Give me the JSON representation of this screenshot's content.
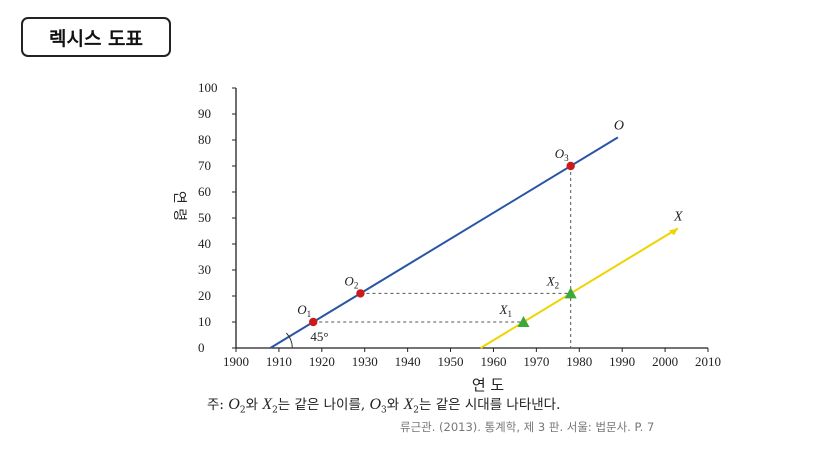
{
  "title": "렉시스 도표",
  "diagram": {
    "xlabel": "연 도",
    "ylabel": "연 령",
    "xticks": [
      1900,
      1910,
      1920,
      1930,
      1940,
      1950,
      1960,
      1970,
      1980,
      1990,
      2000,
      2010
    ],
    "yticks": [
      0,
      10,
      20,
      30,
      40,
      50,
      60,
      70,
      80,
      90,
      100
    ],
    "xlim": [
      1900,
      2010
    ],
    "ylim": [
      0,
      100
    ],
    "angle_label": "45°",
    "lines": [
      {
        "name": "O",
        "color": "#2a55a5",
        "from": [
          1908,
          0
        ],
        "to": [
          1989,
          81
        ]
      },
      {
        "name": "X",
        "color": "#f0d400",
        "from": [
          1957,
          0
        ],
        "to": [
          2003,
          46
        ]
      }
    ],
    "points": [
      {
        "label": "O",
        "sub": "1",
        "x": 1918,
        "y": 10,
        "marker": "circle",
        "color": "#cc1a1a"
      },
      {
        "label": "O",
        "sub": "2",
        "x": 1929,
        "y": 21,
        "marker": "circle",
        "color": "#cc1a1a"
      },
      {
        "label": "O",
        "sub": "3",
        "x": 1978,
        "y": 70,
        "marker": "circle",
        "color": "#cc1a1a"
      },
      {
        "label": "X",
        "sub": "1",
        "x": 1967,
        "y": 10,
        "marker": "triangle",
        "color": "#3aa83a"
      },
      {
        "label": "X",
        "sub": "2",
        "x": 1978,
        "y": 21,
        "marker": "triangle",
        "color": "#3aa83a"
      }
    ]
  },
  "caption": {
    "prefix": "주: ",
    "o2": "O",
    "o2_sub": "2",
    "wa1": "와 ",
    "x2a": "X",
    "x2a_sub": "2",
    "mid1": "는 같은 나이를, ",
    "o3": "O",
    "o3_sub": "3",
    "wa2": "와 ",
    "x2b": "X",
    "x2b_sub": "2",
    "mid2": "는 같은 시대를 나타낸다."
  },
  "source": "류근관. (2013). 통계학, 제 3 판. 서울: 법문사. P. 7"
}
